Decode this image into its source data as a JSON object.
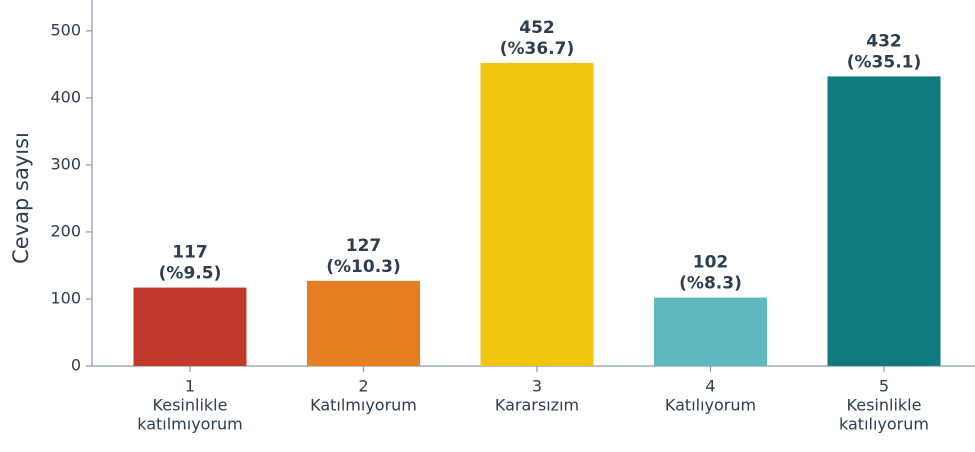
{
  "chart_data": {
    "type": "bar",
    "ylabel": "Cevap sayısı",
    "categories": [
      [
        "1",
        "Kesinlikle",
        "katılmıyorum"
      ],
      [
        "2",
        "Katılmıyorum"
      ],
      [
        "3",
        "Kararsızım"
      ],
      [
        "4",
        "Katılıyorum"
      ],
      [
        "5",
        "Kesinlikle",
        "katılıyorum"
      ]
    ],
    "values": [
      117,
      127,
      452,
      102,
      432
    ],
    "value_labels": [
      [
        "117",
        "(%9.5)"
      ],
      [
        "127",
        "(%10.3)"
      ],
      [
        "452",
        "(%36.7)"
      ],
      [
        "102",
        "(%8.3)"
      ],
      [
        "432",
        "(%35.1)"
      ]
    ],
    "colors": [
      "#c0392b",
      "#e67e22",
      "#f1c40f",
      "#5db8bf",
      "#117a80"
    ],
    "ylim": [
      0,
      546
    ],
    "yticks": [
      0,
      100,
      200,
      300,
      400,
      500
    ],
    "grid": false
  }
}
